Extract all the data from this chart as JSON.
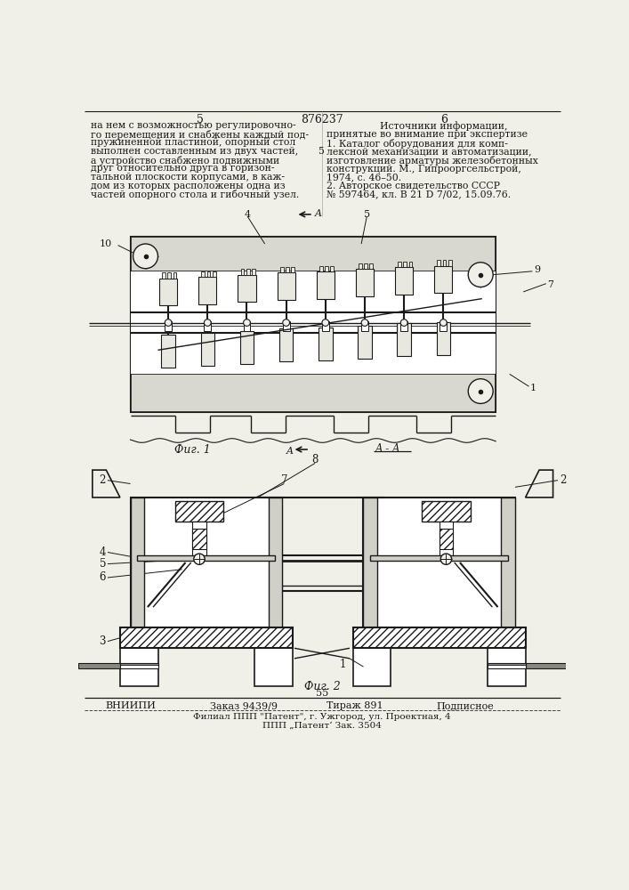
{
  "patent_number": "876237",
  "page_left": "5",
  "page_right": "6",
  "fig1_label": "Фиг. 1",
  "fig2_label": "Фиг. 2",
  "text_left_lines": [
    "на нем с возможностью регулировочно-",
    "го перемещения и снабжены каждый под-",
    "пружиненной пластиной, опорный стол",
    "выполнен составленным из двух частей,",
    "а устройство снабжено подвижными",
    "друг относительно друга в горизон-",
    "тальной плоскости корпусами, в каж-",
    "дом из которых расположены одна из",
    "частей опорного стола и гибочный узел."
  ],
  "text_right_lines": [
    "Источники информации,",
    "принятые во внимание при экспертизе",
    "1. Каталог оборудования для комп-",
    "лексной механизации и автоматизации,",
    "изготовление арматуры железобетонных",
    "конструкций. М., Гипрооргсельстрой,",
    "1974, с. 46–50.",
    "2. Авторское свидетельство СССР",
    "№ 597464, кл. B 21 D 7/02, 15.09.76."
  ],
  "footer_number": "55",
  "footer_vniipи": "ВНИИПИ",
  "footer_order": "Заказ 9439/9",
  "footer_edition": "Тираж 891",
  "footer_type": "Подписное",
  "footer_filial": "Филиал ППП \"Патент\", г. Ужгород, ул. Проектная, 4",
  "footer_ppp": "ППП „Патент‘ Зак. 3504",
  "bg_color": "#f0efe8",
  "line_color": "#1a1a1a",
  "text_color": "#1a1a1a"
}
